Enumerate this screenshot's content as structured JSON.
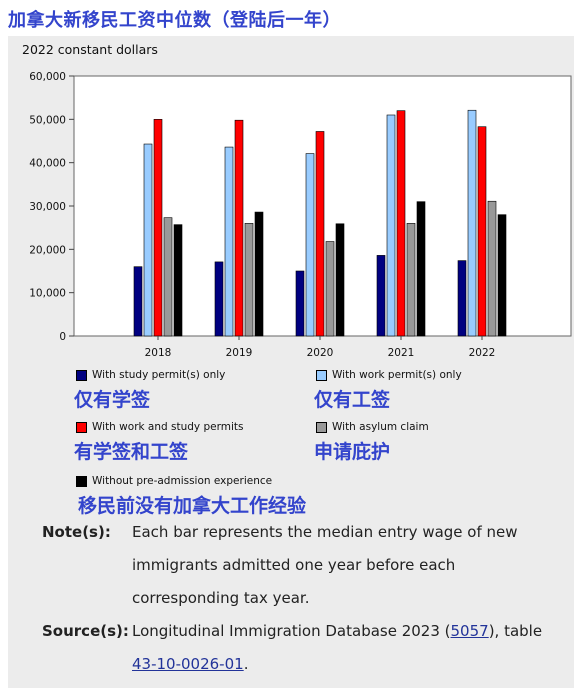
{
  "heading": "加拿大新移民工资中位数（登陆后一年）",
  "units_label": "2022 constant dollars",
  "chart_data": {
    "type": "bar",
    "categories": [
      "2018",
      "2019",
      "2020",
      "2021",
      "2022"
    ],
    "ylim": [
      0,
      60000
    ],
    "yticks": [
      "0",
      "10,000",
      "20,000",
      "30,000",
      "40,000",
      "50,000",
      "60,000"
    ],
    "ytick_values": [
      0,
      10000,
      20000,
      30000,
      40000,
      50000,
      60000
    ],
    "grid": false,
    "series": [
      {
        "name": "With study permit(s) only",
        "color": "#000080",
        "values": [
          16000,
          17100,
          15000,
          18600,
          17400
        ]
      },
      {
        "name": "With work permit(s) only",
        "color": "#99ccff",
        "values": [
          44300,
          43600,
          42100,
          51000,
          52100
        ]
      },
      {
        "name": "With work and study permits",
        "color": "#ff0000",
        "values": [
          50000,
          49800,
          47200,
          52000,
          48300
        ]
      },
      {
        "name": "With asylum claim",
        "color": "#999999",
        "values": [
          27300,
          26000,
          21800,
          26000,
          31100
        ]
      },
      {
        "name": "Without pre-admission experience",
        "color": "#000000",
        "values": [
          25700,
          28600,
          25900,
          31000,
          28000
        ]
      }
    ]
  },
  "legend_cn": [
    "仅有学签",
    "仅有工签",
    "有学签和工签",
    "申请庇护",
    "移民前没有加拿大工作经验"
  ],
  "notes": {
    "note_label": "Note(s):",
    "note_text": "Each bar represents the median entry wage of new immigrants admitted one year before each corresponding tax year.",
    "source_label": "Source(s):",
    "source_pre": "Longitudinal Immigration Database 2023 (",
    "source_link1": "5057",
    "source_mid": "), table ",
    "source_link2": "43-10-0026-01",
    "source_post": "."
  }
}
